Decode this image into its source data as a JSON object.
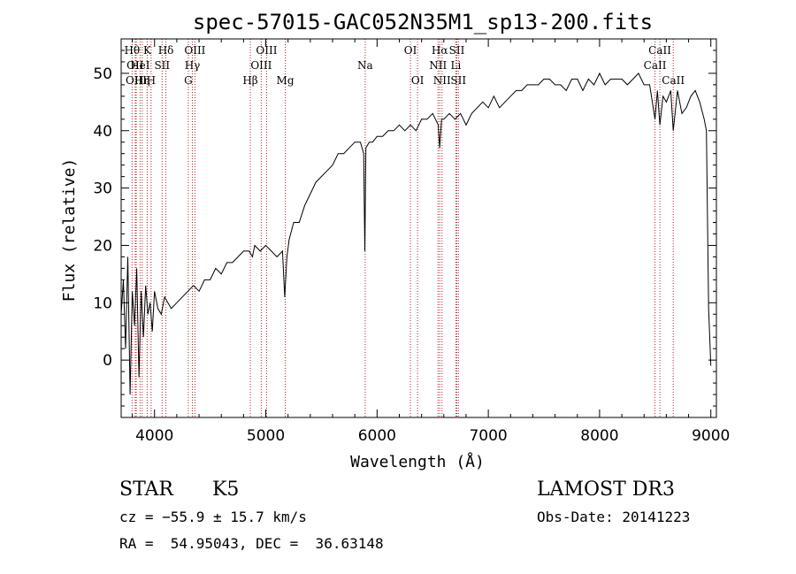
{
  "chart_data": {
    "type": "line",
    "title": "spec-57015-GAC052N35M1_sp13-200.fits",
    "xlabel": "Wavelength (Å)",
    "ylabel": "Flux (relative)",
    "xlim": [
      3700,
      9050
    ],
    "ylim": [
      -10,
      56
    ],
    "x_ticks": [
      4000,
      5000,
      6000,
      7000,
      8000,
      9000
    ],
    "y_ticks": [
      0,
      10,
      20,
      30,
      40,
      50
    ],
    "grid": false,
    "series": [
      {
        "name": "spectrum",
        "x": [
          3700,
          3720,
          3740,
          3760,
          3780,
          3800,
          3820,
          3840,
          3860,
          3880,
          3900,
          3920,
          3940,
          3960,
          3980,
          4000,
          4030,
          4060,
          4090,
          4120,
          4150,
          4200,
          4250,
          4300,
          4350,
          4400,
          4450,
          4500,
          4550,
          4600,
          4650,
          4700,
          4750,
          4800,
          4850,
          4880,
          4900,
          4950,
          5000,
          5050,
          5100,
          5150,
          5170,
          5190,
          5210,
          5250,
          5300,
          5350,
          5400,
          5450,
          5500,
          5550,
          5600,
          5650,
          5700,
          5750,
          5800,
          5850,
          5880,
          5890,
          5900,
          5930,
          5960,
          6000,
          6050,
          6100,
          6150,
          6200,
          6250,
          6300,
          6350,
          6400,
          6450,
          6500,
          6550,
          6563,
          6580,
          6600,
          6650,
          6700,
          6750,
          6800,
          6850,
          6900,
          6950,
          7000,
          7050,
          7100,
          7150,
          7200,
          7250,
          7300,
          7350,
          7400,
          7450,
          7500,
          7550,
          7600,
          7650,
          7700,
          7750,
          7800,
          7850,
          7900,
          7950,
          8000,
          8050,
          8100,
          8150,
          8200,
          8250,
          8300,
          8350,
          8400,
          8450,
          8498,
          8520,
          8542,
          8570,
          8600,
          8640,
          8662,
          8700,
          8740,
          8780,
          8820,
          8860,
          8900,
          8940,
          8960,
          8980,
          9000
        ],
        "values": [
          8,
          14,
          2,
          18,
          -6,
          12,
          6,
          16,
          -3,
          12,
          4,
          13,
          8,
          10,
          5,
          12,
          9,
          8,
          11,
          10,
          9,
          10,
          11,
          12,
          13,
          12,
          14,
          14,
          16,
          15,
          17,
          17,
          18,
          19,
          19,
          18,
          20,
          19,
          20,
          19,
          18,
          19,
          11,
          18,
          21,
          24,
          24,
          27,
          29,
          31,
          32,
          33,
          34,
          36,
          36,
          37,
          38,
          38,
          36,
          19,
          37,
          38,
          38,
          39,
          39,
          40,
          40,
          41,
          40,
          41,
          40,
          42,
          42,
          43,
          41,
          37,
          42,
          42,
          43,
          42,
          43,
          41,
          43,
          44,
          45,
          44,
          46,
          44,
          45,
          46,
          47,
          47,
          48,
          48,
          48,
          49,
          49,
          48,
          48,
          47,
          49,
          49,
          47,
          49,
          48,
          50,
          48,
          49,
          49,
          49,
          48,
          49,
          50,
          48,
          48,
          42,
          47,
          41,
          46,
          45,
          47,
          40,
          47,
          43,
          44,
          46,
          47,
          45,
          42,
          40,
          9,
          -1
        ]
      }
    ],
    "lines": [
      {
        "wave": 3798,
        "label": "Hθ",
        "row": 0
      },
      {
        "wave": 3826,
        "label": "OII",
        "row": 1
      },
      {
        "wave": 3835,
        "label": "OIII",
        "row": 2
      },
      {
        "wave": 3870,
        "label": "HeI",
        "row": 1
      },
      {
        "wave": 3889,
        "label": "Hη",
        "row": 2
      },
      {
        "wave": 3934,
        "label": "K",
        "row": 0
      },
      {
        "wave": 3969,
        "label": "H",
        "row": 2
      },
      {
        "wave": 4068,
        "label": "SII",
        "row": 1
      },
      {
        "wave": 4102,
        "label": "Hδ",
        "row": 0
      },
      {
        "wave": 4304,
        "label": "G",
        "row": 2
      },
      {
        "wave": 4340,
        "label": "Hγ",
        "row": 1
      },
      {
        "wave": 4363,
        "label": "OIII",
        "row": 0
      },
      {
        "wave": 4861,
        "label": "Hβ",
        "row": 2
      },
      {
        "wave": 4959,
        "label": "OIII",
        "row": 1
      },
      {
        "wave": 5007,
        "label": "OIII",
        "row": 0
      },
      {
        "wave": 5175,
        "label": "Mg",
        "row": 2
      },
      {
        "wave": 5893,
        "label": "Na",
        "row": 1
      },
      {
        "wave": 6300,
        "label": "OI",
        "row": 0
      },
      {
        "wave": 6364,
        "label": "OI",
        "row": 2
      },
      {
        "wave": 6548,
        "label": "NII",
        "row": 1
      },
      {
        "wave": 6563,
        "label": "Hα",
        "row": 0
      },
      {
        "wave": 6584,
        "label": "NII",
        "row": 2
      },
      {
        "wave": 6708,
        "label": "Li",
        "row": 1
      },
      {
        "wave": 6717,
        "label": "SII",
        "row": 0
      },
      {
        "wave": 6731,
        "label": "SII",
        "row": 2
      },
      {
        "wave": 8498,
        "label": "CaII",
        "row": 1
      },
      {
        "wave": 8542,
        "label": "CaII",
        "row": 0
      },
      {
        "wave": 8662,
        "label": "CaII",
        "row": 2
      }
    ]
  },
  "info": {
    "object_class": "STAR",
    "subclass": "K5",
    "survey": "LAMOST DR3",
    "cz": "cz = −55.9 ± 15.7 km/s",
    "obs_date": "Obs-Date: 20141223",
    "radec": "RA =  54.95043, DEC =  36.63148"
  }
}
